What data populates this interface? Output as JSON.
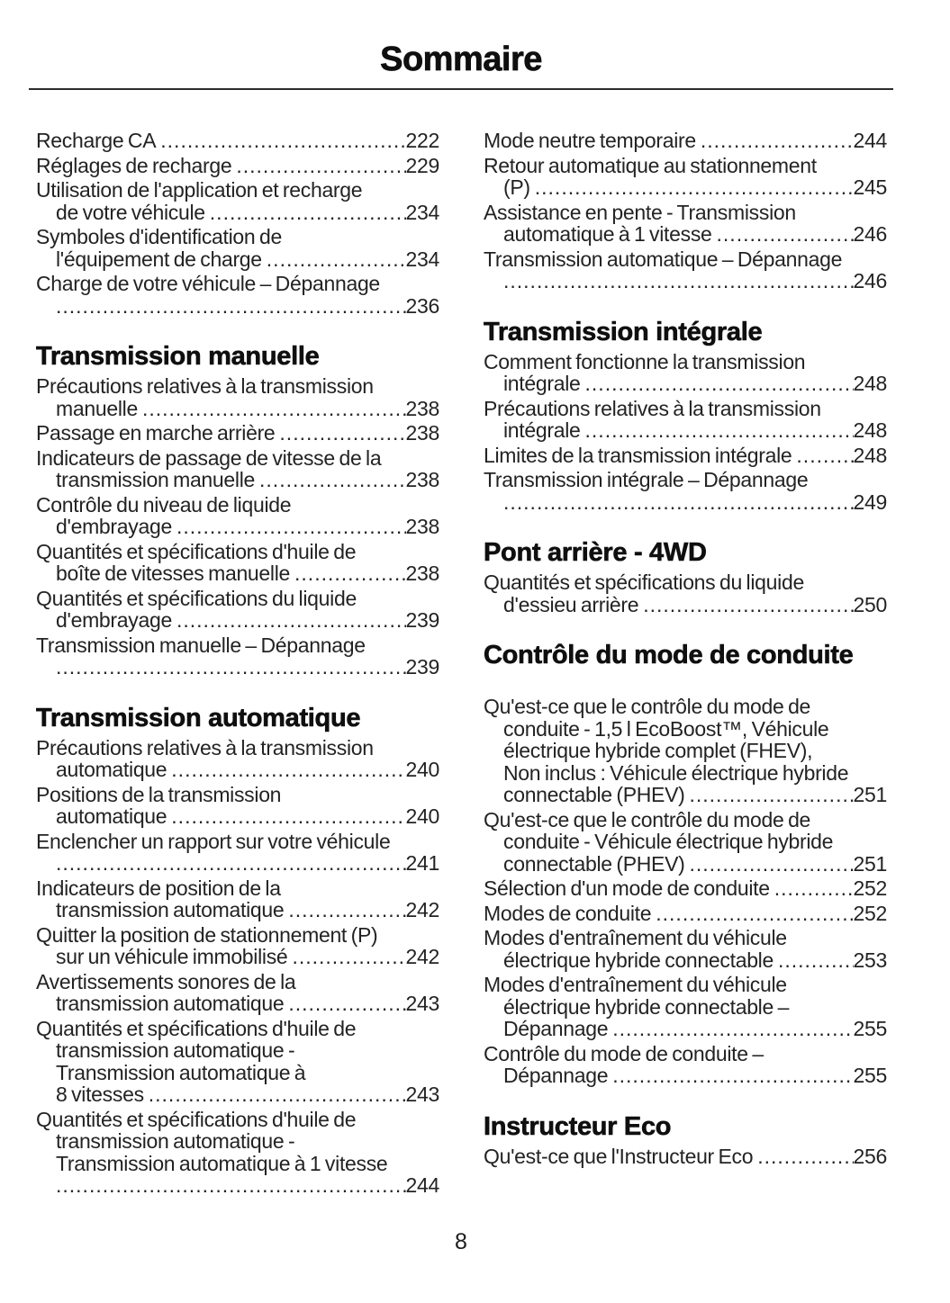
{
  "page": {
    "title": "Sommaire",
    "footer_page_number": "8",
    "ink_color": "#1e1e1e"
  },
  "toc": {
    "columns": [
      {
        "sections": [
          {
            "heading": "",
            "entries": [
              {
                "pre": [],
                "last": "Recharge CA",
                "page": "222"
              },
              {
                "pre": [],
                "last": "Réglages de recharge",
                "page": "229"
              },
              {
                "pre": [
                  "Utilisation de l'application et recharge"
                ],
                "last": "de votre véhicule",
                "page": "234"
              },
              {
                "pre": [
                  "Symboles d'identification de"
                ],
                "last": "l'équipement de charge",
                "page": "234"
              },
              {
                "pre": [
                  "Charge de votre véhicule – Dépannage"
                ],
                "last": "",
                "page": "236"
              }
            ]
          },
          {
            "heading": "Transmission manuelle",
            "entries": [
              {
                "pre": [
                  "Précautions relatives à la transmission"
                ],
                "last": "manuelle",
                "page": "238"
              },
              {
                "pre": [],
                "last": "Passage en marche arrière",
                "page": "238"
              },
              {
                "pre": [
                  "Indicateurs de passage de vitesse de la"
                ],
                "last": "transmission manuelle",
                "page": "238"
              },
              {
                "pre": [
                  "Contrôle du niveau de liquide"
                ],
                "last": "d'embrayage",
                "page": "238"
              },
              {
                "pre": [
                  "Quantités et spécifications d'huile de"
                ],
                "last": "boîte de vitesses manuelle",
                "page": "238"
              },
              {
                "pre": [
                  "Quantités et spécifications du liquide"
                ],
                "last": "d'embrayage",
                "page": "239"
              },
              {
                "pre": [
                  "Transmission manuelle – Dépannage"
                ],
                "last": "",
                "page": "239"
              }
            ]
          },
          {
            "heading": "Transmission automatique",
            "entries": [
              {
                "pre": [
                  "Précautions relatives à la transmission"
                ],
                "last": "automatique",
                "page": "240"
              },
              {
                "pre": [
                  "Positions de la transmission"
                ],
                "last": "automatique",
                "page": "240"
              },
              {
                "pre": [
                  "Enclencher un rapport sur votre véhicule"
                ],
                "last": "",
                "page": "241"
              },
              {
                "pre": [
                  "Indicateurs de position de la"
                ],
                "last": "transmission automatique",
                "page": "242"
              },
              {
                "pre": [
                  "Quitter la position de stationnement (P)"
                ],
                "last": "sur un véhicule immobilisé",
                "page": "242"
              },
              {
                "pre": [
                  "Avertissements sonores de la"
                ],
                "last": "transmission automatique",
                "page": "243"
              },
              {
                "pre": [
                  "Quantités et spécifications d'huile de",
                  "transmission automatique -",
                  "Transmission automatique à"
                ],
                "last": "8 vitesses",
                "page": "243"
              },
              {
                "pre": [
                  "Quantités et spécifications d'huile de",
                  "transmission automatique -",
                  "Transmission automatique à 1 vitesse"
                ],
                "last": "",
                "page": "244"
              }
            ]
          }
        ]
      },
      {
        "sections": [
          {
            "heading": "",
            "entries": [
              {
                "pre": [],
                "last": "Mode neutre temporaire",
                "page": "244"
              },
              {
                "pre": [
                  "Retour automatique au stationnement"
                ],
                "last": "(P)",
                "page": "245"
              },
              {
                "pre": [
                  "Assistance en pente - Transmission"
                ],
                "last": "automatique à 1 vitesse",
                "page": "246"
              },
              {
                "pre": [
                  "Transmission automatique – Dépannage"
                ],
                "last": "",
                "page": "246"
              }
            ]
          },
          {
            "heading": "Transmission intégrale",
            "entries": [
              {
                "pre": [
                  "Comment fonctionne la transmission"
                ],
                "last": "intégrale",
                "page": "248"
              },
              {
                "pre": [
                  "Précautions relatives à la transmission"
                ],
                "last": "intégrale",
                "page": "248"
              },
              {
                "pre": [],
                "last": "Limites de la transmission intégrale",
                "page": "248"
              },
              {
                "pre": [
                  "Transmission intégrale – Dépannage"
                ],
                "last": "",
                "page": "249"
              }
            ]
          },
          {
            "heading": "Pont arrière - 4WD",
            "entries": [
              {
                "pre": [
                  "Quantités et spécifications du liquide"
                ],
                "last": "d'essieu arrière",
                "page": "250"
              }
            ]
          },
          {
            "heading": "Contrôle du mode de conduite",
            "gap_after_heading": true,
            "entries": [
              {
                "pre": [
                  "Qu'est-ce que le contrôle du mode de",
                  "conduite - 1,5 l EcoBoost™, Véhicule",
                  "électrique hybride complet (FHEV),",
                  "Non inclus : Véhicule électrique hybride"
                ],
                "last": "connectable (PHEV)",
                "page": "251"
              },
              {
                "pre": [
                  "Qu'est-ce que le contrôle du mode de",
                  "conduite - Véhicule électrique hybride"
                ],
                "last": "connectable (PHEV)",
                "page": "251"
              },
              {
                "pre": [],
                "last": "Sélection d'un mode de conduite",
                "page": "252"
              },
              {
                "pre": [],
                "last": "Modes de conduite",
                "page": "252"
              },
              {
                "pre": [
                  "Modes d'entraînement du véhicule"
                ],
                "last": "électrique hybride connectable",
                "page": "253"
              },
              {
                "pre": [
                  "Modes d'entraînement du véhicule",
                  "électrique hybride connectable –"
                ],
                "last": "Dépannage",
                "page": "255"
              },
              {
                "pre": [
                  "Contrôle du mode de conduite –"
                ],
                "last": "Dépannage",
                "page": "255"
              }
            ]
          },
          {
            "heading": "Instructeur Eco",
            "entries": [
              {
                "pre": [],
                "last": "Qu'est-ce que l'Instructeur Eco",
                "page": "256"
              }
            ]
          }
        ]
      }
    ]
  }
}
